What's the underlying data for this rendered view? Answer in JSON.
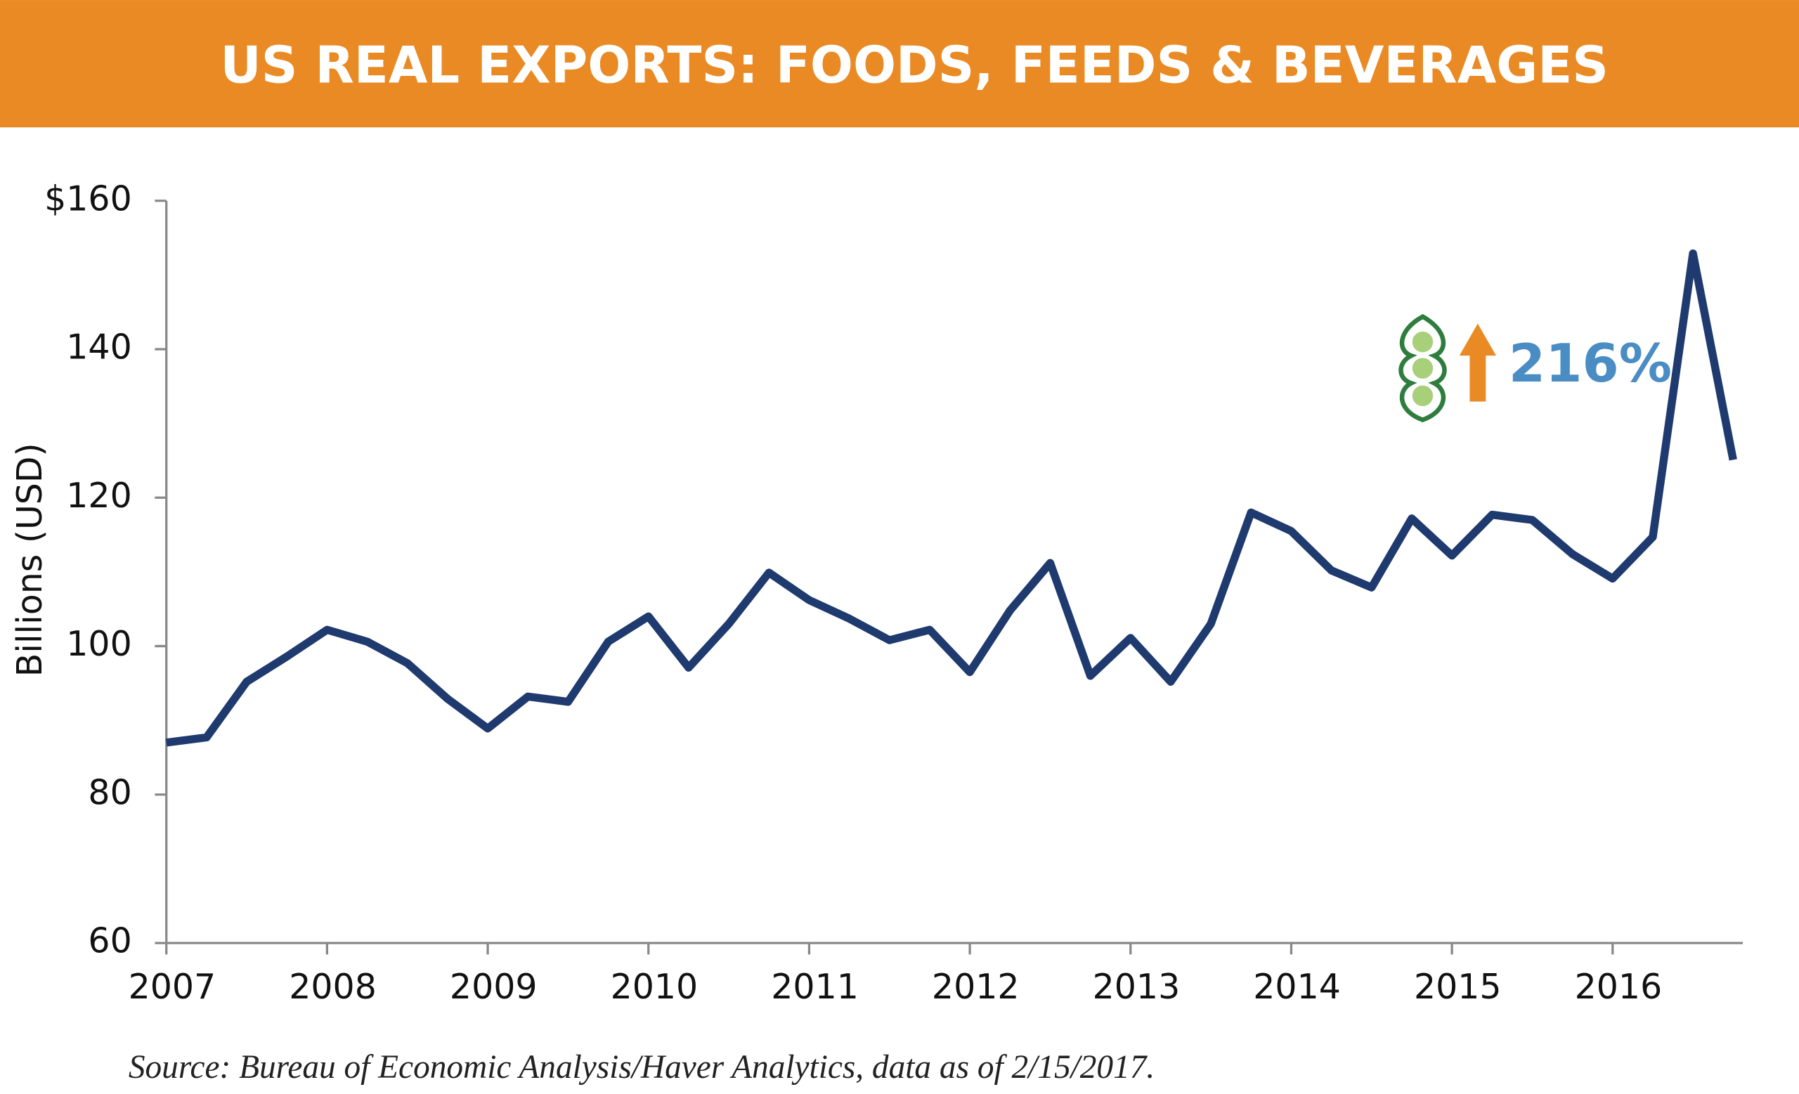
{
  "chart_data": {
    "type": "line",
    "title": "US REAL EXPORTS: FOODS, FEEDS & BEVERAGES",
    "y_label": "Billions (USD)",
    "annotation": "216%",
    "source": "Source: Bureau of Economic Analysis/Haver Analytics, data as of 2/15/2017.",
    "x": [
      2007,
      2007.25,
      2007.5,
      2007.75,
      2008,
      2008.25,
      2008.5,
      2008.75,
      2009,
      2009.25,
      2009.5,
      2009.75,
      2010,
      2010.25,
      2010.5,
      2010.75,
      2011,
      2011.25,
      2011.5,
      2011.75,
      2012,
      2012.25,
      2012.5,
      2012.75,
      2013,
      2013.25,
      2013.5,
      2013.75,
      2014,
      2014.25,
      2014.5,
      2014.75,
      2015,
      2015.25,
      2015.5,
      2015.75,
      2016,
      2016.25,
      2016.5,
      2016.75
    ],
    "series": [
      {
        "name": "US real exports",
        "color": "#1f3a6e",
        "values": [
          87.0,
          87.7,
          95.2,
          98.6,
          102.2,
          100.6,
          97.7,
          92.9,
          88.9,
          93.2,
          92.5,
          100.6,
          104.0,
          97.1,
          103.0,
          109.9,
          106.2,
          103.7,
          100.8,
          102.2,
          96.5,
          104.8,
          111.2,
          96.0,
          101.1,
          95.2,
          103.0,
          118.0,
          115.5,
          110.2,
          107.9,
          117.2,
          112.2,
          117.7,
          117.0,
          112.4,
          109.1,
          114.7,
          152.9,
          125.1
        ]
      }
    ],
    "xlim": [
      2007,
      2016.81
    ],
    "xticks": [
      2007,
      2008,
      2009,
      2010,
      2011,
      2012,
      2013,
      2014,
      2015,
      2016
    ],
    "ylim": [
      60,
      160
    ],
    "yticks": [
      60,
      80,
      100,
      120,
      140,
      {
        "value": 160,
        "label": "$160"
      }
    ]
  }
}
